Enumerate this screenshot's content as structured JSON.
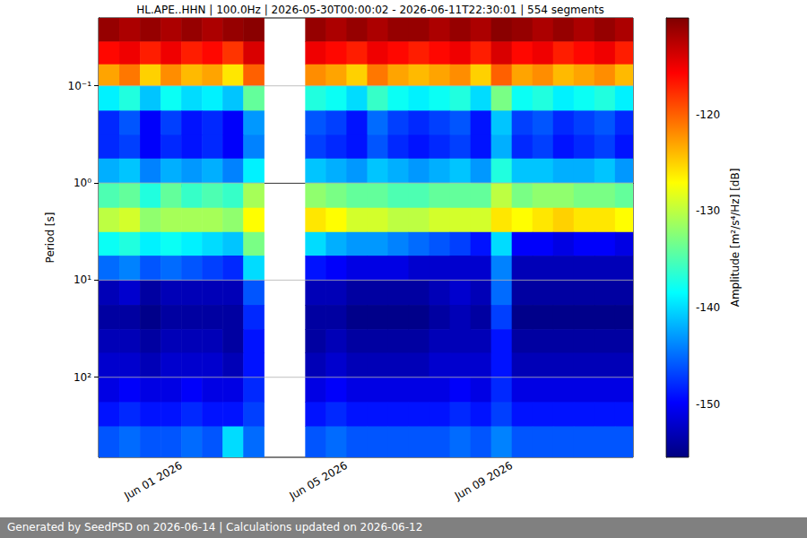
{
  "chart_data": {
    "type": "heatmap",
    "title": "HL.APE..HHN | 100.0Hz | 2026-05-30T00:00:02 - 2026-06-11T22:30:01 | 554 segments",
    "footer": "Generated by SeedPSD on 2026-06-14 | Calculations updated on 2026-06-12",
    "ylabel": "Period [s]",
    "log": "y",
    "grid": true,
    "xlim": [
      "2026-05-30T00:00:02",
      "2026-06-11T22:30:01"
    ],
    "xticks": [
      {
        "value": "2026-06-01T00:00:00",
        "label": "Jun 01 2026"
      },
      {
        "value": "2026-06-05T00:00:00",
        "label": "Jun 05 2026"
      },
      {
        "value": "2026-06-09T00:00:00",
        "label": "Jun 09 2026"
      }
    ],
    "ylim": [
      0.02,
      667
    ],
    "yticks": [
      {
        "value": 0.1,
        "label": "10⁻¹"
      },
      {
        "value": 1,
        "label": "10⁰"
      },
      {
        "value": 10,
        "label": "10¹"
      },
      {
        "value": 100,
        "label": "10²"
      }
    ],
    "time_edges": [
      "2026-05-30T00:00:02",
      "2026-05-30T12:00:00",
      "2026-05-31T00:00:00",
      "2026-05-31T12:00:00",
      "2026-06-01T00:00:00",
      "2026-06-01T12:00:00",
      "2026-06-02T00:00:00",
      "2026-06-02T12:00:00",
      "2026-06-03T00:00:00",
      "2026-06-03T12:00:00",
      "2026-06-04T00:00:00",
      "2026-06-04T12:00:00",
      "2026-06-05T00:00:00",
      "2026-06-05T12:00:00",
      "2026-06-06T00:00:00",
      "2026-06-06T12:00:00",
      "2026-06-07T00:00:00",
      "2026-06-07T12:00:00",
      "2026-06-08T00:00:00",
      "2026-06-08T12:00:00",
      "2026-06-09T00:00:00",
      "2026-06-09T12:00:00",
      "2026-06-10T00:00:00",
      "2026-06-10T12:00:00",
      "2026-06-11T00:00:00",
      "2026-06-11T12:00:00",
      "2026-06-11T22:30:01"
    ],
    "period_edges": [
      0.02,
      0.035,
      0.06,
      0.1,
      0.18,
      0.32,
      0.56,
      1,
      1.8,
      3.2,
      5.6,
      10,
      18,
      32,
      56,
      100,
      180,
      320,
      667
    ],
    "cells": [
      [
        -111,
        -112,
        -111,
        -112,
        -111,
        -112,
        -111,
        -110.5,
        null,
        null,
        -111,
        -112,
        -111,
        -112,
        -111,
        -111,
        -112,
        -111,
        -112,
        -110.5,
        -111,
        -112,
        -111,
        -112,
        -111,
        -112
      ],
      [
        -116,
        -115,
        -117,
        -115,
        -117,
        -116,
        -118,
        -114,
        null,
        null,
        -115,
        -116,
        -117,
        -115,
        -116,
        -117,
        -116,
        -115,
        -117,
        -114,
        -116,
        -115,
        -117,
        -116,
        -115,
        -117
      ],
      [
        -123,
        -121,
        -125,
        -122,
        -124,
        -123,
        -126,
        -120,
        null,
        null,
        -122,
        -123,
        -125,
        -121,
        -123,
        -124,
        -123,
        -122,
        -125,
        -120,
        -123,
        -122,
        -124,
        -123,
        -122,
        -124
      ],
      [
        -139,
        -137,
        -141,
        -138,
        -140,
        -139,
        -141,
        -134,
        null,
        null,
        -137,
        -138,
        -140,
        -136,
        -138,
        -139,
        -138,
        -137,
        -140,
        -133,
        -138,
        -137,
        -139,
        -138,
        -137,
        -139
      ],
      [
        -148,
        -146,
        -150,
        -147,
        -149,
        -148,
        -150,
        -143,
        null,
        null,
        -146,
        -147,
        -149,
        -145,
        -147,
        -148,
        -147,
        -146,
        -149,
        -141,
        -147,
        -146,
        -148,
        -147,
        -146,
        -148
      ],
      [
        -148,
        -147,
        -150,
        -148,
        -149,
        -148,
        -150,
        -144,
        null,
        null,
        -147,
        -148,
        -149,
        -146,
        -148,
        -149,
        -148,
        -147,
        -149,
        -142,
        -148,
        -147,
        -149,
        -148,
        -147,
        -149
      ],
      [
        -142,
        -141,
        -144,
        -142,
        -143,
        -142,
        -144,
        -139,
        null,
        null,
        -141,
        -142,
        -143,
        -141,
        -142,
        -143,
        -142,
        -141,
        -143,
        -137,
        -141,
        -141,
        -142,
        -142,
        -141,
        -143
      ],
      [
        -135,
        -134,
        -137,
        -134,
        -136,
        -135,
        -136,
        -131,
        null,
        null,
        -132,
        -133,
        -134,
        -134,
        -135,
        -135,
        -134,
        -134,
        -134,
        -130,
        -133,
        -132,
        -132,
        -133,
        -133,
        -134
      ],
      [
        -130,
        -129,
        -132,
        -131,
        -131,
        -131,
        -132,
        -127,
        null,
        null,
        -126,
        -127,
        -129,
        -129,
        -130,
        -130,
        -129,
        -129,
        -129,
        -126,
        -127,
        -126,
        -125,
        -126,
        -126,
        -127
      ],
      [
        -138,
        -137,
        -139,
        -138,
        -139,
        -140,
        -141,
        -133,
        null,
        null,
        -140,
        -142,
        -143,
        -143,
        -144,
        -145,
        -146,
        -147,
        -149,
        -140,
        -150,
        -150,
        -151,
        -150,
        -150,
        -151
      ],
      [
        -145,
        -144,
        -146,
        -145,
        -146,
        -147,
        -148,
        -140,
        null,
        null,
        -149,
        -150,
        -151,
        -151,
        -151,
        -152,
        -152,
        -152,
        -152,
        -144,
        -153,
        -153,
        -153,
        -153,
        -153,
        -153
      ],
      [
        -153,
        -152,
        -154,
        -153,
        -153,
        -153,
        -153,
        -146,
        null,
        null,
        -153,
        -153,
        -154,
        -154,
        -154,
        -154,
        -153,
        -152,
        -153,
        -145,
        -154,
        -154,
        -154,
        -154,
        -154,
        -154
      ],
      [
        -154,
        -154,
        -155,
        -154,
        -154,
        -154,
        -154,
        -148,
        null,
        null,
        -154,
        -154,
        -155,
        -155,
        -155,
        -155,
        -154,
        -153,
        -154,
        -147,
        -155,
        -155,
        -155,
        -155,
        -155,
        -155
      ],
      [
        -153,
        -153,
        -154,
        -153,
        -153,
        -153,
        -154,
        -149,
        null,
        null,
        -154,
        -153,
        -154,
        -154,
        -154,
        -154,
        -153,
        -153,
        -153,
        -149,
        -154,
        -154,
        -154,
        -154,
        -154,
        -154
      ],
      [
        -152,
        -152,
        -153,
        -152,
        -152,
        -152,
        -153,
        -149,
        null,
        null,
        -153,
        -152,
        -153,
        -153,
        -153,
        -153,
        -152,
        -152,
        -152,
        -149,
        -153,
        -153,
        -153,
        -153,
        -153,
        -153
      ],
      [
        -151,
        -150,
        -151,
        -151,
        -150,
        -151,
        -151,
        -148,
        null,
        null,
        -151,
        -150,
        -151,
        -151,
        -151,
        -151,
        -151,
        -150,
        -151,
        -148,
        -151,
        -151,
        -151,
        -151,
        -151,
        -151
      ],
      [
        -149,
        -148,
        -149,
        -149,
        -148,
        -149,
        -149,
        -147,
        null,
        null,
        -149,
        -148,
        -149,
        -149,
        -149,
        -149,
        -149,
        -148,
        -149,
        -147,
        -149,
        -149,
        -149,
        -149,
        -149,
        -149
      ],
      [
        -146,
        -145,
        -146,
        -146,
        -145,
        -146,
        -140,
        -145,
        null,
        null,
        -146,
        -145,
        -146,
        -146,
        -146,
        -146,
        -146,
        -145,
        -146,
        -144,
        -146,
        -146,
        -146,
        -146,
        -146,
        -146
      ]
    ],
    "colorbar": {
      "label": "Amplitude [m²/s⁴/Hz] [dB]",
      "lim": [
        -155.5,
        -110
      ],
      "ticks": [
        -150,
        -140,
        -130,
        -120
      ]
    }
  }
}
